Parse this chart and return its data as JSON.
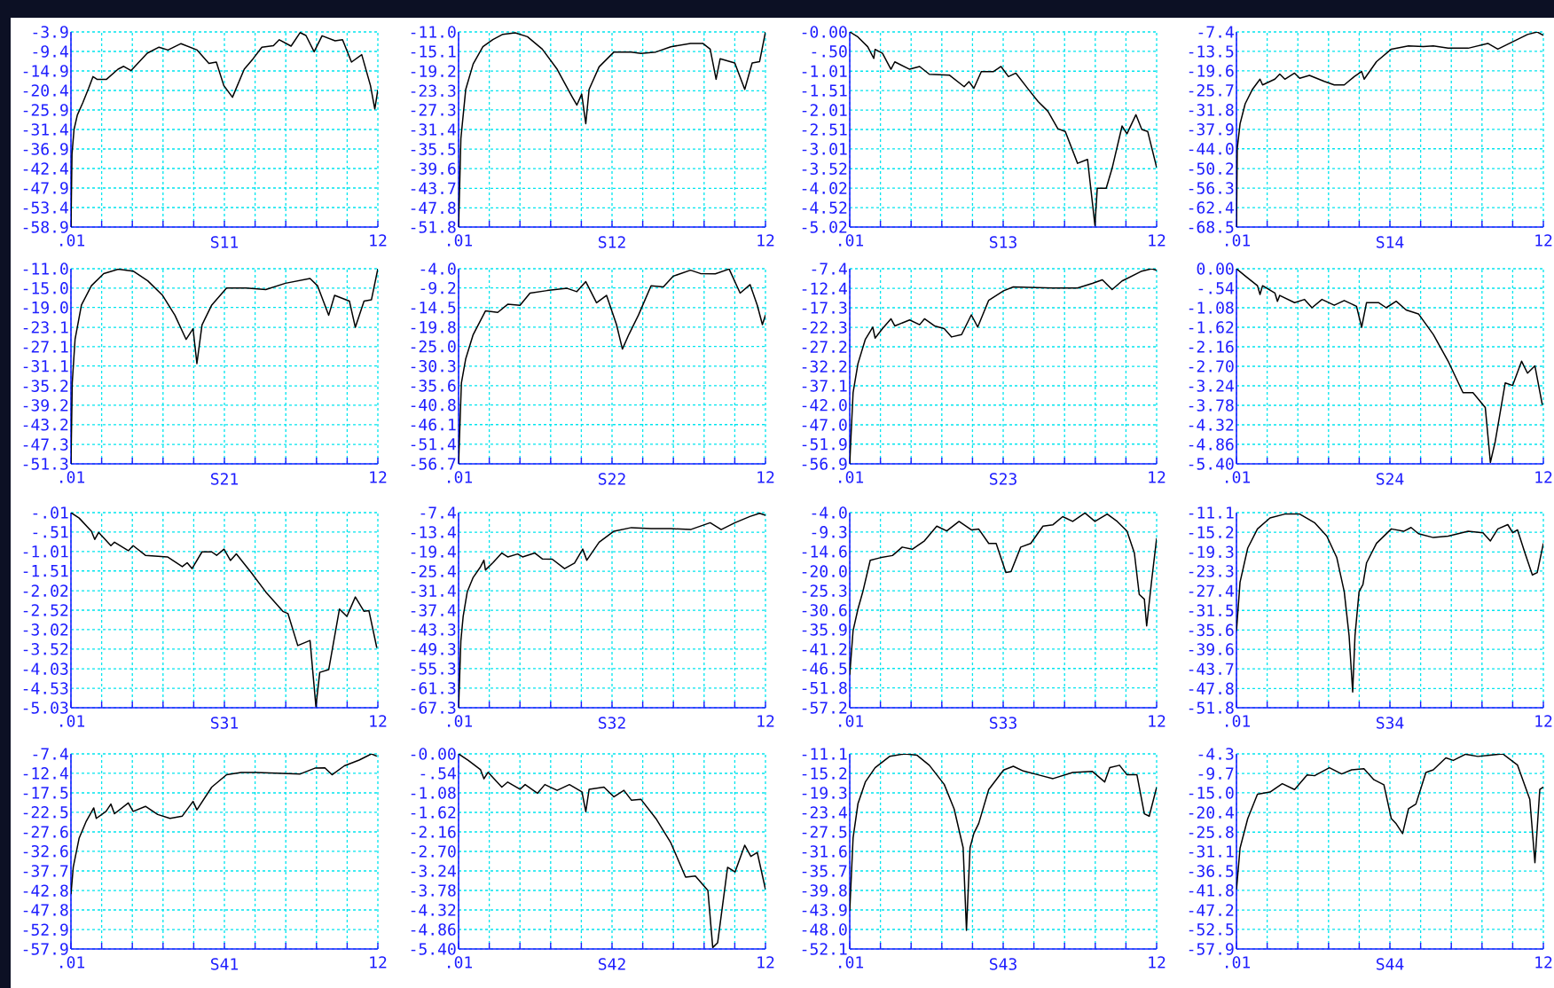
{
  "chart_data": [
    {
      "type": "line",
      "xlabel": "S11",
      "color": "#000000",
      "grid": true,
      "xlim": [
        0.01,
        12
      ],
      "ylim": [
        -58.9,
        -3.9
      ],
      "xticks": [
        {
          "value": 0.01,
          "label": ".01"
        },
        {
          "value": 1.209,
          "label": null
        },
        {
          "value": 2.408,
          "label": null
        },
        {
          "value": 3.607,
          "label": null
        },
        {
          "value": 4.806,
          "label": null
        },
        {
          "value": 6.005,
          "label": null
        },
        {
          "value": 7.204,
          "label": null
        },
        {
          "value": 8.403,
          "label": null
        },
        {
          "value": 9.602,
          "label": null
        },
        {
          "value": 10.801,
          "label": null
        },
        12
      ],
      "yticks": [
        -3.9,
        -9.4,
        -14.9,
        -20.4,
        -25.9,
        -31.4,
        -36.9,
        -42.4,
        -47.9,
        -53.4,
        -58.9
      ],
      "x": [
        0.01,
        0.05,
        0.13,
        0.26,
        0.47,
        0.7,
        0.87,
        1.04,
        1.39,
        1.85,
        2.07,
        2.36,
        2.99,
        3.45,
        3.8,
        4.31,
        4.94,
        5.4,
        5.69,
        5.98,
        6.32,
        6.78,
        7.12,
        7.47,
        7.92,
        8.15,
        8.61,
        8.96,
        9.19,
        9.51,
        9.82,
        10.33,
        10.62,
        10.97,
        11.37,
        11.71,
        11.88,
        12
      ],
      "values": [
        -58.9,
        -38.3,
        -31.4,
        -27.3,
        -23.9,
        -19.8,
        -16.5,
        -17.3,
        -17.3,
        -14.4,
        -13.6,
        -14.8,
        -9.9,
        -8.2,
        -9.0,
        -7.2,
        -9.0,
        -12.8,
        -12.4,
        -19.0,
        -22.3,
        -14.4,
        -11.5,
        -8.2,
        -7.8,
        -6.1,
        -7.9,
        -4.1,
        -4.9,
        -9.5,
        -5.0,
        -6.4,
        -6.1,
        -12.4,
        -10.3,
        -19.0,
        -25.6,
        -20.2
      ]
    },
    {
      "type": "line",
      "xlabel": "S12",
      "color": "#000000",
      "grid": true,
      "xlim": [
        0.01,
        12
      ],
      "ylim": [
        -51.8,
        -11.0
      ],
      "xticks": [
        {
          "value": 0.01,
          "label": ".01"
        },
        {
          "value": 1.209,
          "label": null
        },
        {
          "value": 2.408,
          "label": null
        },
        {
          "value": 3.607,
          "label": null
        },
        {
          "value": 4.806,
          "label": null
        },
        {
          "value": 6.005,
          "label": null
        },
        {
          "value": 7.204,
          "label": null
        },
        {
          "value": 8.403,
          "label": null
        },
        {
          "value": 9.602,
          "label": null
        },
        {
          "value": 10.801,
          "label": null
        },
        12
      ],
      "yticks": [
        {
          "value": -11.0,
          "label": "-11.0"
        },
        -15.1,
        -19.2,
        -23.3,
        -27.3,
        -31.4,
        -35.5,
        -39.6,
        -43.7,
        -47.8,
        -51.8
      ],
      "x": [
        0.01,
        0.1,
        0.29,
        0.58,
        0.96,
        1.35,
        1.74,
        2.22,
        2.7,
        3.28,
        3.86,
        4.44,
        4.63,
        4.82,
        4.98,
        5.11,
        5.5,
        6.08,
        6.75,
        7.14,
        7.72,
        8.3,
        9.07,
        9.55,
        9.84,
        10.07,
        10.23,
        10.8,
        11.19,
        11.48,
        11.77,
        12
      ],
      "values": [
        -51.8,
        -33.3,
        -23.0,
        -17.7,
        -14.1,
        -12.6,
        -11.5,
        -11.2,
        -12.0,
        -14.6,
        -18.8,
        -24.5,
        -26.3,
        -24.0,
        -30.2,
        -23.0,
        -18.3,
        -15.2,
        -15.2,
        -15.5,
        -15.2,
        -14.1,
        -13.4,
        -13.4,
        -14.6,
        -20.9,
        -16.6,
        -17.5,
        -23.0,
        -17.5,
        -17.2,
        -11.0
      ]
    },
    {
      "type": "line",
      "xlabel": "S13",
      "color": "#000000",
      "grid": true,
      "xlim": [
        0.01,
        12
      ],
      "ylim": [
        -5.02,
        0
      ],
      "xticks": [
        {
          "value": 0.01,
          "label": ".01"
        },
        {
          "value": 1.209,
          "label": null
        },
        {
          "value": 2.408,
          "label": null
        },
        {
          "value": 3.607,
          "label": null
        },
        {
          "value": 4.806,
          "label": null
        },
        {
          "value": 6.005,
          "label": null
        },
        {
          "value": 7.204,
          "label": null
        },
        {
          "value": 8.403,
          "label": null
        },
        {
          "value": 9.602,
          "label": null
        },
        {
          "value": 10.801,
          "label": null
        },
        12
      ],
      "yticks": [
        {
          "value": 0,
          "label": "-0.00"
        },
        {
          "value": -0.5,
          "label": "-.50"
        },
        -1.01,
        -1.51,
        -2.01,
        -2.51,
        -3.01,
        -3.52,
        -4.02,
        -4.52,
        -5.02
      ],
      "x": [
        0.01,
        0.33,
        0.71,
        0.95,
        1.0,
        1.29,
        1.62,
        1.77,
        2.35,
        2.74,
        3.12,
        3.9,
        4.48,
        4.67,
        4.86,
        5.15,
        5.63,
        5.92,
        6.21,
        6.5,
        6.98,
        7.37,
        7.75,
        8.14,
        8.43,
        8.91,
        9.3,
        9.59,
        9.68,
        10.03,
        10.26,
        10.65,
        10.84,
        11.19,
        11.42,
        11.65,
        12
      ],
      "values": [
        0,
        -0.13,
        -0.38,
        -0.68,
        -0.45,
        -0.55,
        -0.96,
        -0.77,
        -0.96,
        -0.89,
        -1.09,
        -1.11,
        -1.41,
        -1.28,
        -1.45,
        -1.02,
        -1.02,
        -0.89,
        -1.15,
        -1.06,
        -1.47,
        -1.79,
        -2.04,
        -2.49,
        -2.56,
        -3.38,
        -3.28,
        -4.98,
        -4.02,
        -4.02,
        -3.51,
        -2.42,
        -2.62,
        -2.13,
        -2.51,
        -2.56,
        -3.49
      ]
    },
    {
      "type": "line",
      "xlabel": "S14",
      "color": "#000000",
      "grid": true,
      "xlim": [
        0.01,
        12
      ],
      "ylim": [
        -68.5,
        -7.4
      ],
      "xticks": [
        {
          "value": 0.01,
          "label": ".01"
        },
        {
          "value": 1.209,
          "label": null
        },
        {
          "value": 2.408,
          "label": null
        },
        {
          "value": 3.607,
          "label": null
        },
        {
          "value": 4.806,
          "label": null
        },
        {
          "value": 6.005,
          "label": null
        },
        {
          "value": 7.204,
          "label": null
        },
        {
          "value": 8.403,
          "label": null
        },
        {
          "value": 9.602,
          "label": null
        },
        {
          "value": 10.801,
          "label": null
        },
        12
      ],
      "yticks": [
        -7.4,
        -13.5,
        -19.6,
        -25.7,
        -31.8,
        -37.9,
        {
          "value": -44.0,
          "label": "-44.0"
        },
        -50.2,
        -56.3,
        -62.4,
        -68.5
      ],
      "x": [
        0.01,
        0.04,
        0.15,
        0.35,
        0.64,
        0.93,
        1.03,
        1.51,
        1.7,
        1.9,
        2.28,
        2.48,
        2.86,
        3.44,
        3.83,
        4.22,
        4.61,
        4.9,
        5.0,
        5.48,
        6.06,
        6.73,
        7.31,
        7.7,
        8.28,
        9.06,
        9.83,
        10.22,
        10.8,
        11.38,
        11.76,
        12
      ],
      "values": [
        -68.5,
        -43.9,
        -36.2,
        -29.9,
        -25.3,
        -22.2,
        -24.0,
        -22.2,
        -20.6,
        -22.2,
        -20.3,
        -21.9,
        -21.0,
        -22.9,
        -24.0,
        -24.0,
        -21.4,
        -19.8,
        -22.2,
        -16.7,
        -12.8,
        -11.8,
        -12.0,
        -11.8,
        -12.5,
        -12.5,
        -11.0,
        -12.8,
        -10.5,
        -8.2,
        -7.4,
        -8.5
      ]
    },
    {
      "type": "line",
      "xlabel": "S21",
      "color": "#000000",
      "grid": true,
      "xlim": [
        0.01,
        12
      ],
      "ylim": [
        -51.3,
        -11.0
      ],
      "xticks": [
        {
          "value": 0.01,
          "label": ".01"
        },
        {
          "value": 1.209,
          "label": null
        },
        {
          "value": 2.408,
          "label": null
        },
        {
          "value": 3.607,
          "label": null
        },
        {
          "value": 4.806,
          "label": null
        },
        {
          "value": 6.005,
          "label": null
        },
        {
          "value": 7.204,
          "label": null
        },
        {
          "value": 8.403,
          "label": null
        },
        {
          "value": 9.602,
          "label": null
        },
        {
          "value": 10.801,
          "label": null
        },
        12
      ],
      "yticks": [
        {
          "value": -11.0,
          "label": "-11.0"
        },
        {
          "value": -15.0,
          "label": "-15.0"
        },
        {
          "value": -19.0,
          "label": "-19.0"
        },
        -23.1,
        -27.1,
        -31.1,
        -35.2,
        -39.2,
        -43.2,
        -47.3,
        -51.3
      ],
      "x": [
        0.01,
        0.06,
        0.17,
        0.42,
        0.81,
        1.29,
        1.86,
        2.44,
        3.01,
        3.59,
        4.07,
        4.51,
        4.78,
        4.93,
        5.13,
        5.51,
        6.09,
        6.85,
        7.62,
        8.39,
        9.35,
        9.64,
        10.08,
        10.31,
        10.89,
        11.12,
        11.46,
        11.75,
        12
      ],
      "values": [
        -51.3,
        -34.6,
        -25.6,
        -18.5,
        -14.5,
        -12.0,
        -11.1,
        -11.5,
        -13.5,
        -16.5,
        -20.6,
        -25.6,
        -23.4,
        -30.6,
        -22.6,
        -18.5,
        -15.0,
        -15.0,
        -15.3,
        -14.0,
        -13.0,
        -14.5,
        -20.6,
        -16.5,
        -17.7,
        -23.1,
        -17.7,
        -17.4,
        -11.0
      ]
    },
    {
      "type": "line",
      "xlabel": "S22",
      "color": "#000000",
      "grid": true,
      "xlim": [
        0.01,
        12
      ],
      "ylim": [
        -56.7,
        -4.0
      ],
      "xticks": [
        {
          "value": 0.01,
          "label": ".01"
        },
        {
          "value": 1.209,
          "label": null
        },
        {
          "value": 2.408,
          "label": null
        },
        {
          "value": 3.607,
          "label": null
        },
        {
          "value": 4.806,
          "label": null
        },
        {
          "value": 6.005,
          "label": null
        },
        {
          "value": 7.204,
          "label": null
        },
        {
          "value": 8.403,
          "label": null
        },
        {
          "value": 9.602,
          "label": null
        },
        {
          "value": 10.801,
          "label": null
        },
        12
      ],
      "yticks": [
        {
          "value": -4.0,
          "label": "-4.0"
        },
        -9.2,
        -14.5,
        -19.8,
        {
          "value": -25.0,
          "label": "-25.0"
        },
        -30.3,
        -35.6,
        -40.8,
        -46.1,
        -51.4,
        -56.7
      ],
      "x": [
        0.01,
        0.12,
        0.29,
        0.58,
        1.06,
        1.54,
        1.93,
        2.41,
        2.8,
        3.47,
        4.25,
        4.63,
        4.98,
        5.4,
        5.79,
        6.18,
        6.41,
        6.66,
        7.04,
        7.53,
        8.01,
        8.4,
        9.07,
        9.46,
        10.04,
        10.58,
        11.01,
        11.4,
        11.68,
        11.88,
        12
      ],
      "values": [
        -56.7,
        -34.9,
        -28.3,
        -21.8,
        -15.4,
        -15.8,
        -13.6,
        -13.9,
        -10.6,
        -9.9,
        -9.3,
        -10.2,
        -7.5,
        -13.2,
        -11.2,
        -19.1,
        -25.7,
        -21.8,
        -16.5,
        -8.6,
        -8.9,
        -6.0,
        -4.4,
        -5.3,
        -5.4,
        -4.1,
        -10.6,
        -8.3,
        -13.9,
        -19.1,
        -16.5
      ]
    },
    {
      "type": "line",
      "xlabel": "S23",
      "color": "#000000",
      "grid": true,
      "xlim": [
        0.01,
        12
      ],
      "ylim": [
        -56.9,
        -7.4
      ],
      "xticks": [
        {
          "value": 0.01,
          "label": ".01"
        },
        {
          "value": 1.209,
          "label": null
        },
        {
          "value": 2.408,
          "label": null
        },
        {
          "value": 3.607,
          "label": null
        },
        {
          "value": 4.806,
          "label": null
        },
        {
          "value": 6.005,
          "label": null
        },
        {
          "value": 7.204,
          "label": null
        },
        {
          "value": 8.403,
          "label": null
        },
        {
          "value": 9.602,
          "label": null
        },
        {
          "value": 10.801,
          "label": null
        },
        12
      ],
      "yticks": [
        -7.4,
        -12.4,
        -17.3,
        -22.3,
        -27.2,
        -32.2,
        -37.1,
        {
          "value": -42.0,
          "label": "-42.0"
        },
        {
          "value": -47.0,
          "label": "-47.0"
        },
        -51.9,
        -56.9
      ],
      "x": [
        0.01,
        0.04,
        0.14,
        0.33,
        0.62,
        0.91,
        1.0,
        1.29,
        1.62,
        1.77,
        2.35,
        2.74,
        2.93,
        3.32,
        3.7,
        3.99,
        4.38,
        4.76,
        5.01,
        5.44,
        6.02,
        6.4,
        6.98,
        7.95,
        8.91,
        9.49,
        9.88,
        10.26,
        10.65,
        11.42,
        11.81,
        12
      ],
      "values": [
        -56.9,
        -52.5,
        -38.9,
        -31.5,
        -25.3,
        -22.2,
        -25.0,
        -22.6,
        -20.1,
        -21.9,
        -20.4,
        -21.6,
        -20.1,
        -21.9,
        -22.6,
        -24.7,
        -24.1,
        -19.1,
        -22.2,
        -15.4,
        -13.0,
        -12.0,
        -12.1,
        -12.3,
        -12.3,
        -11.1,
        -10.2,
        -12.7,
        -10.5,
        -8.0,
        -7.4,
        -7.8
      ]
    },
    {
      "type": "line",
      "xlabel": "S24",
      "color": "#000000",
      "grid": true,
      "xlim": [
        0.01,
        12
      ],
      "ylim": [
        -5.4,
        0
      ],
      "xticks": [
        {
          "value": 0.01,
          "label": ".01"
        },
        {
          "value": 1.209,
          "label": null
        },
        {
          "value": 2.408,
          "label": null
        },
        {
          "value": 3.607,
          "label": null
        },
        {
          "value": 4.806,
          "label": null
        },
        {
          "value": 6.005,
          "label": null
        },
        {
          "value": 7.204,
          "label": null
        },
        {
          "value": 8.403,
          "label": null
        },
        {
          "value": 9.602,
          "label": null
        },
        {
          "value": 10.801,
          "label": null
        },
        12
      ],
      "yticks": [
        {
          "value": 0,
          "label": "0.00"
        },
        {
          "value": -0.54,
          "label": "-.54"
        },
        -1.08,
        -1.62,
        -2.16,
        {
          "value": -2.7,
          "label": "-2.70"
        },
        -3.24,
        -3.78,
        -4.32,
        -4.86,
        {
          "value": -5.4,
          "label": "-5.40"
        }
      ],
      "x": [
        0.01,
        0.35,
        0.83,
        0.93,
        1.03,
        1.51,
        1.61,
        1.7,
        2.28,
        2.67,
        2.96,
        3.35,
        3.83,
        4.22,
        4.7,
        4.9,
        5.09,
        5.57,
        5.86,
        6.25,
        6.64,
        7.12,
        7.7,
        8.28,
        8.86,
        9.25,
        9.73,
        9.93,
        10.12,
        10.51,
        10.8,
        11.15,
        11.38,
        11.67,
        11.96
      ],
      "values": [
        0,
        -0.2,
        -0.47,
        -0.71,
        -0.47,
        -0.67,
        -0.9,
        -0.74,
        -0.94,
        -0.85,
        -1.08,
        -0.85,
        -1.01,
        -0.88,
        -1.04,
        -1.62,
        -0.94,
        -0.94,
        -1.08,
        -0.9,
        -1.14,
        -1.25,
        -1.82,
        -2.56,
        -3.43,
        -3.43,
        -3.84,
        -5.36,
        -4.78,
        -3.16,
        -3.23,
        -2.56,
        -2.89,
        -2.69,
        -3.77
      ]
    },
    {
      "type": "line",
      "xlabel": "S31",
      "color": "#000000",
      "grid": true,
      "xlim": [
        0.01,
        12
      ],
      "ylim": [
        -5.03,
        -0.01
      ],
      "xticks": [
        {
          "value": 0.01,
          "label": ".01"
        },
        {
          "value": 1.209,
          "label": null
        },
        {
          "value": 2.408,
          "label": null
        },
        {
          "value": 3.607,
          "label": null
        },
        {
          "value": 4.806,
          "label": null
        },
        {
          "value": 6.005,
          "label": null
        },
        {
          "value": 7.204,
          "label": null
        },
        {
          "value": 8.403,
          "label": null
        },
        {
          "value": 9.602,
          "label": null
        },
        {
          "value": 10.801,
          "label": null
        },
        12
      ],
      "yticks": [
        {
          "value": -0.01,
          "label": "-.01"
        },
        {
          "value": -0.51,
          "label": "-.51"
        },
        -1.01,
        -1.51,
        -2.02,
        -2.52,
        -3.02,
        -3.52,
        -4.03,
        -4.53,
        -5.03
      ],
      "x": [
        0.01,
        0.33,
        0.81,
        0.94,
        1.09,
        1.57,
        1.71,
        2.25,
        2.44,
        2.92,
        3.78,
        4.36,
        4.55,
        4.74,
        5.13,
        5.51,
        5.7,
        5.99,
        6.24,
        6.47,
        7.05,
        7.62,
        8.29,
        8.49,
        8.87,
        9.35,
        9.58,
        9.73,
        10.08,
        10.5,
        10.79,
        11.12,
        11.46,
        11.65,
        11.96
      ],
      "values": [
        -0.01,
        -0.15,
        -0.49,
        -0.7,
        -0.52,
        -0.86,
        -0.77,
        -0.99,
        -0.86,
        -1.11,
        -1.15,
        -1.4,
        -1.3,
        -1.45,
        -1.02,
        -1.02,
        -1.11,
        -0.95,
        -1.24,
        -1.07,
        -1.55,
        -2.05,
        -2.55,
        -2.61,
        -3.43,
        -3.3,
        -5.0,
        -4.12,
        -4.05,
        -2.49,
        -2.68,
        -2.18,
        -2.55,
        -2.53,
        -3.49
      ]
    },
    {
      "type": "line",
      "xlabel": "S32",
      "color": "#000000",
      "grid": true,
      "xlim": [
        0.01,
        12
      ],
      "ylim": [
        -67.3,
        -7.4
      ],
      "xticks": [
        {
          "value": 0.01,
          "label": ".01"
        },
        {
          "value": 1.209,
          "label": null
        },
        {
          "value": 2.408,
          "label": null
        },
        {
          "value": 3.607,
          "label": null
        },
        {
          "value": 4.806,
          "label": null
        },
        {
          "value": 6.005,
          "label": null
        },
        {
          "value": 7.204,
          "label": null
        },
        {
          "value": 8.403,
          "label": null
        },
        {
          "value": 9.602,
          "label": null
        },
        {
          "value": 10.801,
          "label": null
        },
        12
      ],
      "yticks": [
        -7.4,
        -13.4,
        -19.4,
        -25.4,
        -31.4,
        -37.4,
        -43.3,
        -49.3,
        -55.3,
        -61.3,
        -67.3
      ],
      "x": [
        0.01,
        0.1,
        0.19,
        0.35,
        0.58,
        0.87,
        1.0,
        1.06,
        1.35,
        1.7,
        1.93,
        2.32,
        2.51,
        2.99,
        3.28,
        3.67,
        4.15,
        4.54,
        4.86,
        5.02,
        5.5,
        6.08,
        6.76,
        7.53,
        8.3,
        9.07,
        9.84,
        10.27,
        10.81,
        11.39,
        11.77,
        12
      ],
      "values": [
        -67.3,
        -46.7,
        -39.2,
        -31.7,
        -27.3,
        -24.0,
        -22.0,
        -25.0,
        -22.8,
        -19.8,
        -21.0,
        -20.1,
        -21.0,
        -19.8,
        -21.6,
        -21.7,
        -24.6,
        -22.9,
        -18.6,
        -22.0,
        -16.5,
        -13.1,
        -12.0,
        -12.3,
        -12.3,
        -12.6,
        -10.5,
        -12.6,
        -10.5,
        -8.6,
        -7.6,
        -8.2
      ]
    },
    {
      "type": "line",
      "xlabel": "S33",
      "color": "#000000",
      "grid": true,
      "xlim": [
        0.01,
        12
      ],
      "ylim": [
        -57.2,
        -4.0
      ],
      "xticks": [
        {
          "value": 0.01,
          "label": ".01"
        },
        {
          "value": 1.209,
          "label": null
        },
        {
          "value": 2.408,
          "label": null
        },
        {
          "value": 3.607,
          "label": null
        },
        {
          "value": 4.806,
          "label": null
        },
        {
          "value": 6.005,
          "label": null
        },
        {
          "value": 7.204,
          "label": null
        },
        {
          "value": 8.403,
          "label": null
        },
        {
          "value": 9.602,
          "label": null
        },
        {
          "value": 10.801,
          "label": null
        },
        12
      ],
      "yticks": [
        {
          "value": -4.0,
          "label": "-4.0"
        },
        -9.3,
        -14.6,
        {
          "value": -20.0,
          "label": "-20.0"
        },
        -25.3,
        -30.6,
        -35.9,
        -41.2,
        -46.5,
        -51.8,
        -57.2
      ],
      "x": [
        0.01,
        0.14,
        0.33,
        0.52,
        0.81,
        1.2,
        1.68,
        2.06,
        2.45,
        2.93,
        3.41,
        3.8,
        4.28,
        4.76,
        5.05,
        5.44,
        5.73,
        6.11,
        6.31,
        6.69,
        7.08,
        7.56,
        7.95,
        8.33,
        8.72,
        9.2,
        9.59,
        10.07,
        10.46,
        10.84,
        11.13,
        11.32,
        11.52,
        11.61,
        11.81,
        12
      ],
      "values": [
        -48.2,
        -36.2,
        -30.3,
        -25.6,
        -17.0,
        -16.3,
        -15.7,
        -13.4,
        -14.0,
        -11.7,
        -7.7,
        -9.0,
        -6.4,
        -8.7,
        -8.5,
        -12.4,
        -12.4,
        -20.3,
        -20.1,
        -13.4,
        -12.4,
        -7.7,
        -7.3,
        -5.1,
        -6.4,
        -4.1,
        -6.4,
        -4.4,
        -6.4,
        -9.0,
        -15.0,
        -26.3,
        -27.6,
        -34.9,
        -22.2,
        -11.0
      ]
    },
    {
      "type": "line",
      "xlabel": "S34",
      "color": "#000000",
      "grid": true,
      "xlim": [
        0.01,
        12
      ],
      "ylim": [
        -51.8,
        -11.1
      ],
      "xticks": [
        {
          "value": 0.01,
          "label": ".01"
        },
        {
          "value": 1.209,
          "label": null
        },
        {
          "value": 2.408,
          "label": null
        },
        {
          "value": 3.607,
          "label": null
        },
        {
          "value": 4.806,
          "label": null
        },
        {
          "value": 6.005,
          "label": null
        },
        {
          "value": 7.204,
          "label": null
        },
        {
          "value": 8.403,
          "label": null
        },
        {
          "value": 9.602,
          "label": null
        },
        {
          "value": 10.801,
          "label": null
        },
        12
      ],
      "yticks": [
        -11.1,
        -15.2,
        -19.3,
        -23.3,
        -27.4,
        -31.5,
        -35.6,
        -39.6,
        -43.7,
        -47.8,
        -51.8
      ],
      "x": [
        0.01,
        0.15,
        0.45,
        0.83,
        1.32,
        1.9,
        2.48,
        3.06,
        3.54,
        3.93,
        4.22,
        4.41,
        4.55,
        4.64,
        4.8,
        4.95,
        5.09,
        5.48,
        6.06,
        6.54,
        6.83,
        7.12,
        7.7,
        8.28,
        9.06,
        9.64,
        9.93,
        10.22,
        10.61,
        10.8,
        10.99,
        11.28,
        11.57,
        11.76,
        12
      ],
      "values": [
        -35.8,
        -25.6,
        -18.5,
        -14.5,
        -12.2,
        -11.4,
        -11.4,
        -13.2,
        -16.0,
        -20.5,
        -27.6,
        -36.8,
        -48.5,
        -36.8,
        -27.6,
        -26.1,
        -21.6,
        -17.5,
        -14.5,
        -15.0,
        -14.2,
        -15.5,
        -16.3,
        -16.0,
        -15.0,
        -15.3,
        -17.0,
        -14.5,
        -13.6,
        -15.3,
        -14.7,
        -19.5,
        -24.1,
        -23.6,
        -17.5
      ]
    },
    {
      "type": "line",
      "xlabel": "S41",
      "color": "#000000",
      "grid": true,
      "xlim": [
        0.01,
        12
      ],
      "ylim": [
        -57.9,
        -7.4
      ],
      "xticks": [
        {
          "value": 0.01,
          "label": ".01"
        },
        {
          "value": 1.209,
          "label": null
        },
        {
          "value": 2.408,
          "label": null
        },
        {
          "value": 3.607,
          "label": null
        },
        {
          "value": 4.806,
          "label": null
        },
        {
          "value": 6.005,
          "label": null
        },
        {
          "value": 7.204,
          "label": null
        },
        {
          "value": 8.403,
          "label": null
        },
        {
          "value": 9.602,
          "label": null
        },
        {
          "value": 10.801,
          "label": null
        },
        12
      ],
      "yticks": [
        -7.4,
        -12.4,
        -17.5,
        -22.5,
        -27.6,
        -32.6,
        -37.7,
        -42.8,
        -47.8,
        -52.9,
        -57.9
      ],
      "x": [
        0.01,
        0.1,
        0.33,
        0.61,
        0.9,
        1.0,
        1.38,
        1.57,
        1.71,
        2.25,
        2.44,
        2.92,
        3.4,
        3.88,
        4.36,
        4.78,
        4.93,
        5.51,
        6.09,
        6.66,
        7.24,
        8.01,
        8.97,
        9.54,
        9.93,
        10.21,
        10.69,
        11.27,
        11.75,
        11.96
      ],
      "values": [
        -43.7,
        -36.7,
        -29.2,
        -24.8,
        -21.4,
        -24.1,
        -22.3,
        -20.4,
        -22.9,
        -20.1,
        -22.3,
        -21.0,
        -23.1,
        -24.1,
        -23.5,
        -19.7,
        -21.9,
        -16.0,
        -12.8,
        -12.2,
        -12.2,
        -12.4,
        -12.6,
        -11.1,
        -11.0,
        -12.8,
        -10.5,
        -9.0,
        -7.4,
        -8.0
      ]
    },
    {
      "type": "line",
      "xlabel": "S42",
      "color": "#000000",
      "grid": true,
      "xlim": [
        0.01,
        12
      ],
      "ylim": [
        -5.4,
        0
      ],
      "xticks": [
        {
          "value": 0.01,
          "label": ".01"
        },
        {
          "value": 1.209,
          "label": null
        },
        {
          "value": 2.408,
          "label": null
        },
        {
          "value": 3.607,
          "label": null
        },
        {
          "value": 4.806,
          "label": null
        },
        {
          "value": 6.005,
          "label": null
        },
        {
          "value": 7.204,
          "label": null
        },
        {
          "value": 8.403,
          "label": null
        },
        {
          "value": 9.602,
          "label": null
        },
        {
          "value": 10.801,
          "label": null
        },
        12
      ],
      "yticks": [
        {
          "value": 0,
          "label": "-0.00"
        },
        {
          "value": -0.54,
          "label": "-.54"
        },
        -1.08,
        -1.62,
        -2.16,
        {
          "value": -2.7,
          "label": "-2.70"
        },
        -3.24,
        -3.78,
        -4.32,
        -4.86,
        {
          "value": -5.4,
          "label": "-5.40"
        }
      ],
      "x": [
        0.01,
        0.39,
        0.87,
        1.0,
        1.16,
        1.7,
        1.93,
        2.41,
        2.61,
        3.09,
        3.38,
        3.86,
        4.34,
        4.83,
        4.98,
        5.11,
        5.69,
        6.08,
        6.47,
        6.76,
        7.14,
        7.72,
        8.3,
        8.88,
        9.26,
        9.75,
        9.94,
        10.13,
        10.52,
        10.81,
        11.19,
        11.43,
        11.68,
        12
      ],
      "values": [
        0,
        -0.18,
        -0.44,
        -0.69,
        -0.51,
        -0.92,
        -0.78,
        -0.98,
        -0.85,
        -1.09,
        -0.85,
        -1.01,
        -0.85,
        -1.05,
        -1.6,
        -0.98,
        -0.92,
        -1.19,
        -1.01,
        -1.28,
        -1.26,
        -1.79,
        -2.46,
        -3.41,
        -3.38,
        -3.78,
        -5.36,
        -5.23,
        -3.14,
        -3.27,
        -2.53,
        -2.84,
        -2.73,
        -3.75
      ]
    },
    {
      "type": "line",
      "xlabel": "S43",
      "color": "#000000",
      "grid": true,
      "xlim": [
        0.01,
        12
      ],
      "ylim": [
        -52.1,
        -11.1
      ],
      "xticks": [
        {
          "value": 0.01,
          "label": ".01"
        },
        {
          "value": 1.209,
          "label": null
        },
        {
          "value": 2.408,
          "label": null
        },
        {
          "value": 3.607,
          "label": null
        },
        {
          "value": 4.806,
          "label": null
        },
        {
          "value": 6.005,
          "label": null
        },
        {
          "value": 7.204,
          "label": null
        },
        {
          "value": 8.403,
          "label": null
        },
        {
          "value": 9.602,
          "label": null
        },
        {
          "value": 10.801,
          "label": null
        },
        12
      ],
      "yticks": [
        -11.1,
        -15.2,
        -19.3,
        -23.4,
        -27.5,
        -31.6,
        -35.7,
        -39.8,
        -43.9,
        {
          "value": -48.0,
          "label": "-48.0"
        },
        -52.1
      ],
      "x": [
        0.01,
        0.14,
        0.33,
        0.62,
        1.0,
        1.58,
        2.16,
        2.64,
        3.12,
        3.7,
        4.09,
        4.44,
        4.57,
        4.71,
        4.86,
        5.05,
        5.44,
        6.02,
        6.4,
        6.79,
        7.37,
        7.95,
        8.72,
        9.49,
        9.97,
        10.17,
        10.55,
        10.84,
        11.23,
        11.52,
        11.71,
        12
      ],
      "values": [
        -44.1,
        -28.8,
        -21.6,
        -17.0,
        -14.0,
        -11.6,
        -11.1,
        -11.4,
        -13.5,
        -17.5,
        -22.7,
        -30.8,
        -48.2,
        -30.8,
        -27.8,
        -25.7,
        -18.6,
        -14.5,
        -13.7,
        -14.7,
        -15.5,
        -16.3,
        -15.0,
        -14.8,
        -17.0,
        -14.0,
        -13.5,
        -15.5,
        -15.5,
        -23.7,
        -24.2,
        -18.1
      ]
    },
    {
      "type": "line",
      "xlabel": "S44",
      "color": "#000000",
      "grid": true,
      "xlim": [
        0.01,
        12
      ],
      "ylim": [
        -57.9,
        -4.3
      ],
      "xticks": [
        {
          "value": 0.01,
          "label": ".01"
        },
        {
          "value": 1.209,
          "label": null
        },
        {
          "value": 2.408,
          "label": null
        },
        {
          "value": 3.607,
          "label": null
        },
        {
          "value": 4.806,
          "label": null
        },
        {
          "value": 6.005,
          "label": null
        },
        {
          "value": 7.204,
          "label": null
        },
        {
          "value": 8.403,
          "label": null
        },
        {
          "value": 9.602,
          "label": null
        },
        {
          "value": 10.801,
          "label": null
        },
        12
      ],
      "yticks": [
        -4.3,
        -9.7,
        {
          "value": -15.0,
          "label": "-15.0"
        },
        -20.4,
        -25.8,
        -31.1,
        -36.5,
        -41.8,
        -47.2,
        -52.5,
        -57.9
      ],
      "x": [
        0.01,
        0.15,
        0.45,
        0.83,
        1.32,
        1.8,
        2.28,
        2.77,
        3.06,
        3.64,
        4.12,
        4.51,
        4.99,
        5.38,
        5.77,
        6.06,
        6.25,
        6.5,
        6.73,
        7.02,
        7.41,
        7.7,
        8.19,
        8.48,
        8.96,
        9.44,
        9.83,
        10.41,
        10.99,
        11.47,
        11.67,
        11.86,
        12
      ],
      "values": [
        -41.6,
        -30.2,
        -22.1,
        -15.4,
        -14.8,
        -12.5,
        -14.1,
        -10.1,
        -10.3,
        -8.1,
        -9.8,
        -8.7,
        -8.4,
        -11.4,
        -12.8,
        -22.1,
        -23.5,
        -26.2,
        -19.4,
        -18.1,
        -9.4,
        -8.7,
        -5.4,
        -6.1,
        -4.4,
        -5.0,
        -4.7,
        -4.3,
        -7.4,
        -16.8,
        -34.2,
        -14.1,
        -13.4
      ]
    }
  ]
}
